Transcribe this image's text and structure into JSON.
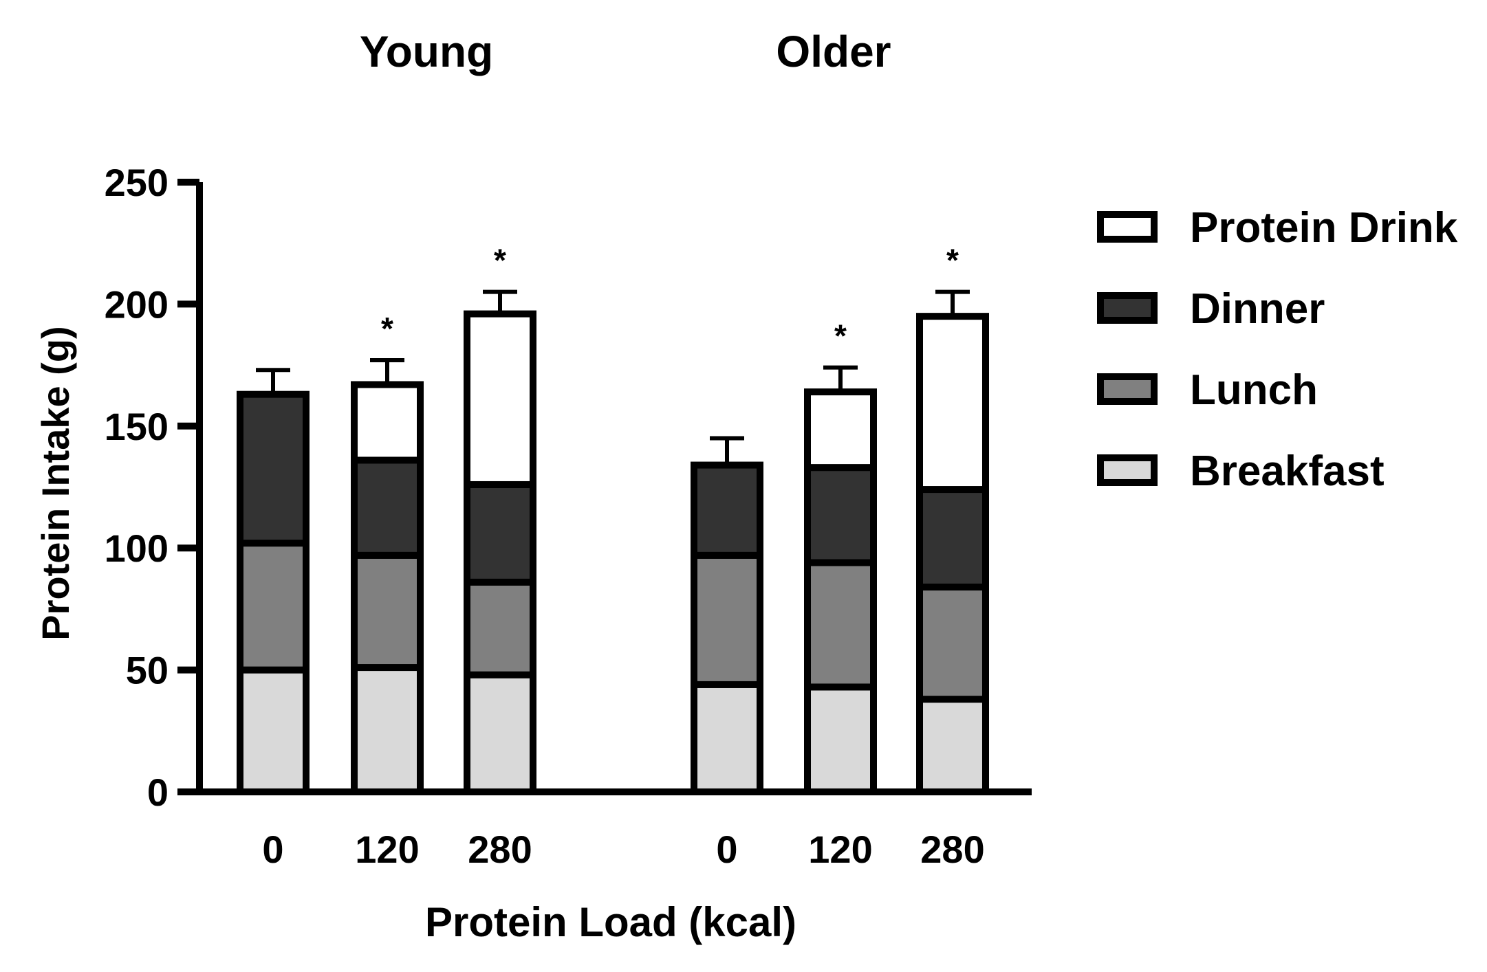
{
  "chart_data": {
    "type": "bar",
    "stacked": true,
    "groups": [
      "Young",
      "Older"
    ],
    "categories": [
      "0",
      "120",
      "280"
    ],
    "xlabel": "Protein Load (kcal)",
    "ylabel": "Protein Intake (g)",
    "ylim": [
      0,
      250
    ],
    "yticks": [
      0,
      50,
      100,
      150,
      200,
      250
    ],
    "grid": false,
    "legend_position": "right",
    "series": [
      {
        "name": "Breakfast",
        "color": "#d9d9d9",
        "values": {
          "Young": [
            50,
            51,
            48
          ],
          "Older": [
            44,
            43,
            38
          ]
        }
      },
      {
        "name": "Lunch",
        "color": "#808080",
        "values": {
          "Young": [
            52,
            46,
            38
          ],
          "Older": [
            53,
            51,
            46
          ]
        }
      },
      {
        "name": "Dinner",
        "color": "#333333",
        "values": {
          "Young": [
            61,
            39,
            40
          ],
          "Older": [
            37,
            39,
            40
          ]
        }
      },
      {
        "name": "Protein Drink",
        "color": "#ffffff",
        "values": {
          "Young": [
            0,
            31,
            70
          ],
          "Older": [
            0,
            31,
            71
          ]
        }
      }
    ],
    "errors_upper": {
      "Young": [
        10,
        10,
        9
      ],
      "Older": [
        11,
        10,
        10
      ]
    },
    "significance": {
      "Young": [
        "",
        "*",
        "*"
      ],
      "Older": [
        "",
        "*",
        "*"
      ]
    },
    "legend_order": [
      "Protein Drink",
      "Dinner",
      "Lunch",
      "Breakfast"
    ]
  }
}
